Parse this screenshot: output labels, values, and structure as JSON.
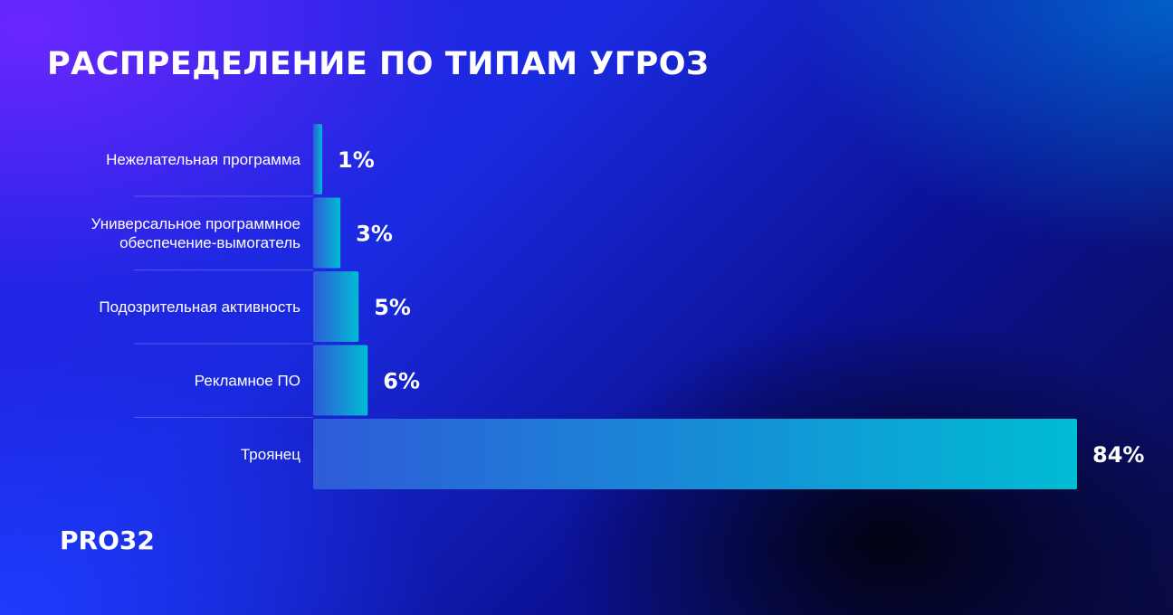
{
  "title": "РАСПРЕДЕЛЕНИЕ ПО ТИПАМ УГРОЗ",
  "brand": "PRO32",
  "colors": {
    "bar_start": "#2f5bd8",
    "bar_end": "#00bcd4",
    "text": "#ffffff"
  },
  "chart_data": {
    "type": "bar",
    "orientation": "horizontal",
    "title": "РАСПРЕДЕЛЕНИЕ ПО ТИПАМ УГРОЗ",
    "categories": [
      [
        "Нежелательная программа"
      ],
      [
        "Универсальное программное",
        "обеспечение-вымогатель"
      ],
      [
        "Подозрительная активность"
      ],
      [
        "Рекламное ПО"
      ],
      [
        "Троянец"
      ]
    ],
    "values": [
      1,
      3,
      5,
      6,
      84
    ],
    "value_labels": [
      "1%",
      "3%",
      "5%",
      "6%",
      "84%"
    ],
    "unit": "%",
    "xlim": [
      0,
      84
    ],
    "grid": false,
    "legend": "none"
  }
}
